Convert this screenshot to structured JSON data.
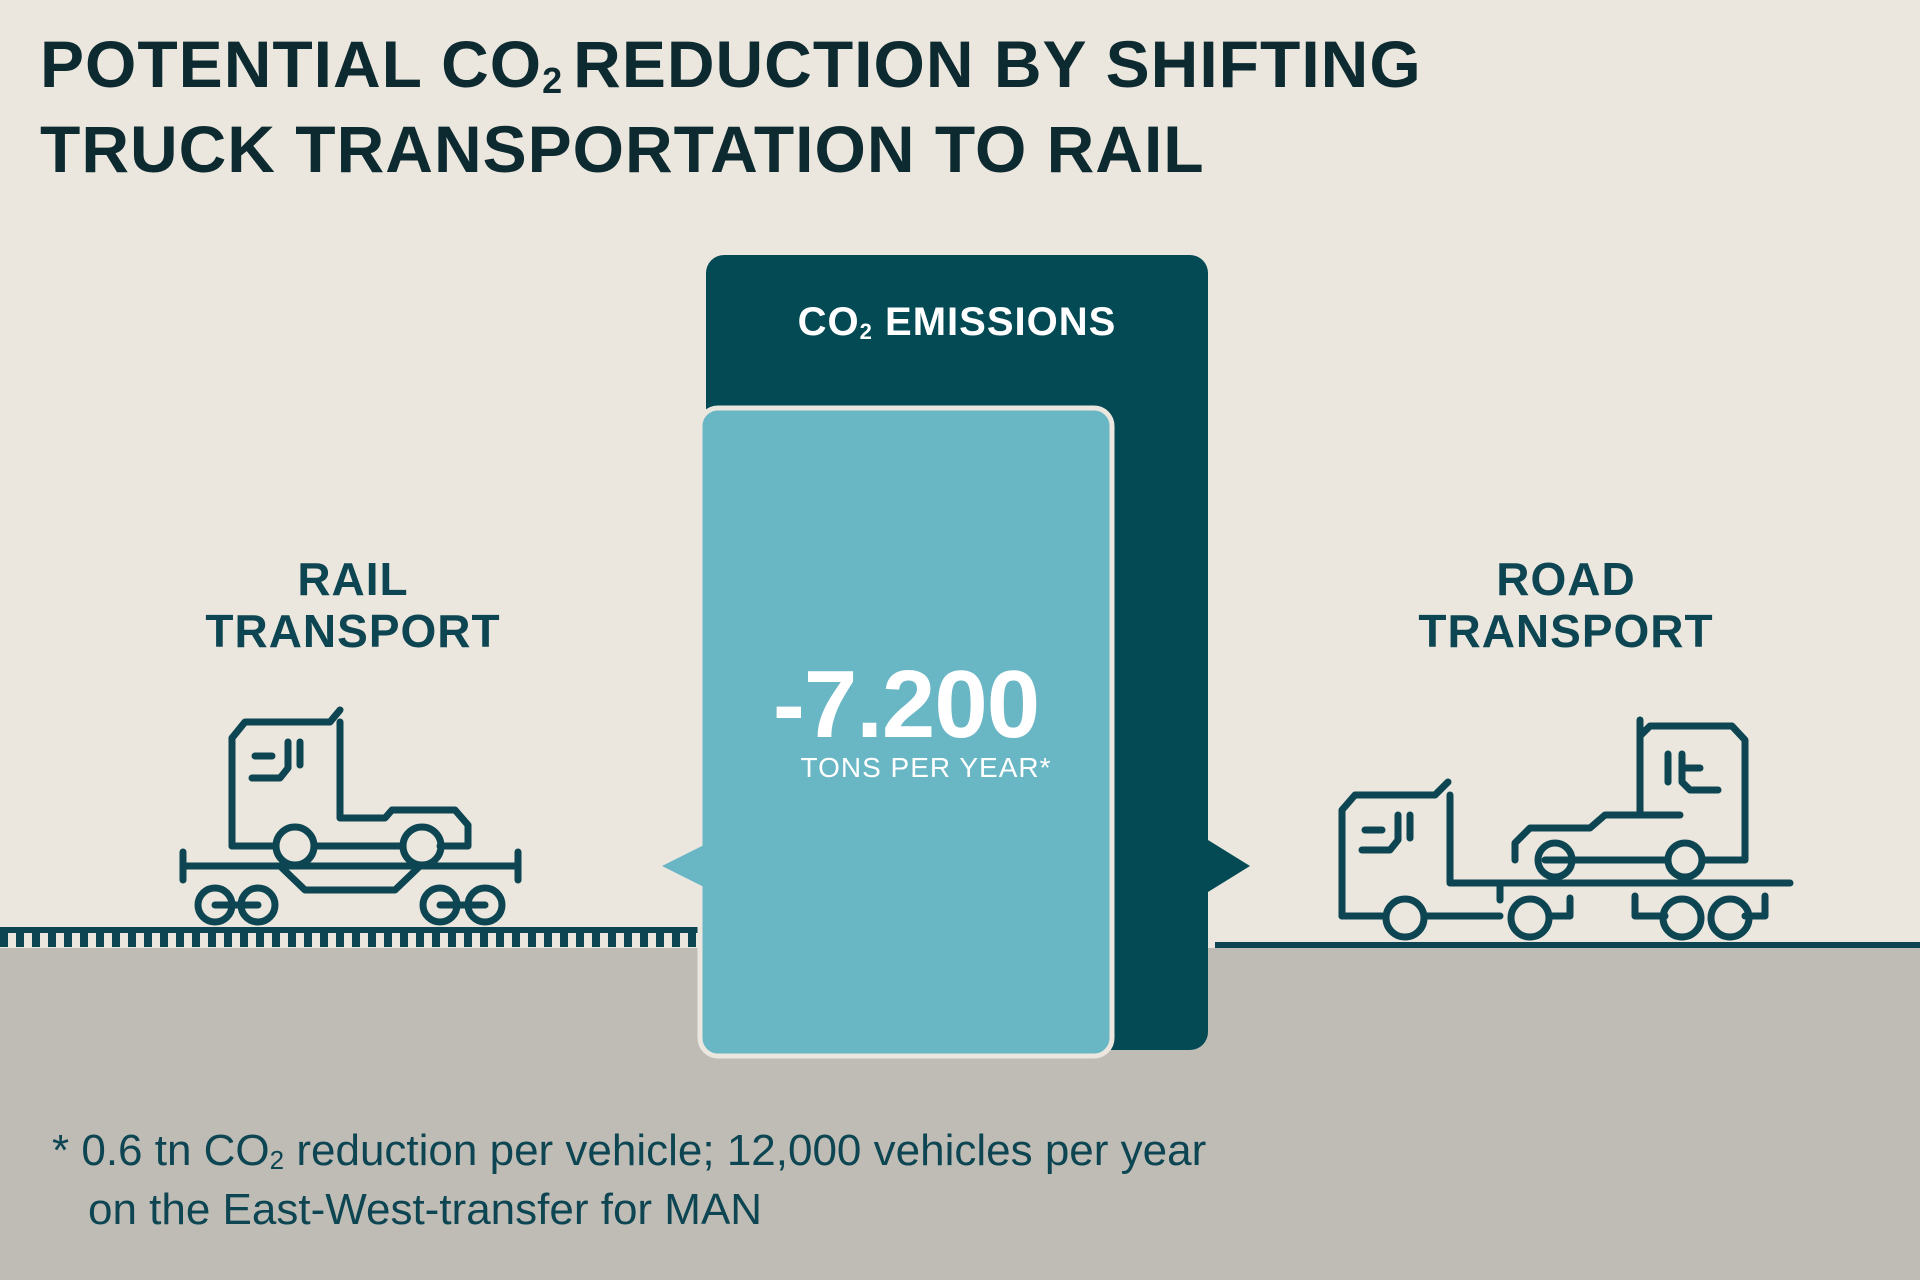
{
  "title": {
    "part1": "POTENTIAL CO",
    "sub": "2",
    "part2": "REDUCTION BY SHIFTING",
    "line2": "TRUCK TRANSPORTATION TO RAIL"
  },
  "rail": {
    "line1": "RAIL",
    "line2": "TRANSPORT"
  },
  "road": {
    "line1": "ROAD",
    "line2": "TRANSPORT"
  },
  "emissions": {
    "label_prefix": "CO",
    "label_sub": "2",
    "label_suffix": " EMISSIONS",
    "value": "-7.200",
    "unit": "TONS PER YEAR*"
  },
  "footnote": {
    "part1": "* 0.6 tn CO",
    "sub": "2",
    "part2": " reduction per vehicle; 12,000 vehicles per year",
    "line2": "on the East-West-transfer for MAN"
  },
  "colors": {
    "background": "#ebe7de",
    "ground": "#bfbcb5",
    "dark_teal": "#034a54",
    "light_teal": "#69b6c4",
    "line": "#0d4652"
  },
  "icons": [
    "train-with-truck-icon",
    "truck-with-car-icon"
  ]
}
